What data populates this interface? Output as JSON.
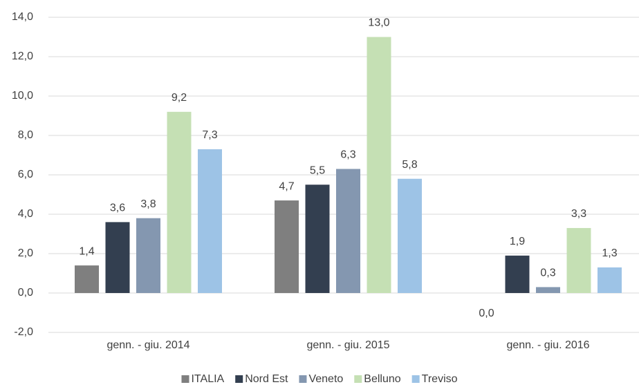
{
  "chart_data": {
    "type": "bar",
    "categories": [
      "genn. - giu. 2014",
      "genn. - giu. 2015",
      "genn. - giu. 2016"
    ],
    "series": [
      {
        "name": "ITALIA",
        "color": "#7f7f7f",
        "values": [
          1.4,
          4.7,
          0.0
        ],
        "value_labels": [
          "1,4",
          "4,7",
          "0,0"
        ]
      },
      {
        "name": "Nord Est",
        "color": "#333f50",
        "values": [
          3.6,
          5.5,
          1.9
        ],
        "value_labels": [
          "3,6",
          "5,5",
          "1,9"
        ]
      },
      {
        "name": "Veneto",
        "color": "#8497b0",
        "values": [
          3.8,
          6.3,
          0.3
        ],
        "value_labels": [
          "3,8",
          "6,3",
          "0,3"
        ]
      },
      {
        "name": "Belluno",
        "color": "#c5e0b4",
        "values": [
          9.2,
          13.0,
          3.3
        ],
        "value_labels": [
          "9,2",
          "13,0",
          "3,3"
        ]
      },
      {
        "name": "Treviso",
        "color": "#9dc3e6",
        "values": [
          7.3,
          5.8,
          1.3
        ],
        "value_labels": [
          "7,3",
          "5,8",
          "1,3"
        ]
      }
    ],
    "ylim": [
      -2,
      14
    ],
    "yticks": [
      {
        "value": -2,
        "label": "-2,0"
      },
      {
        "value": 0,
        "label": "0,0"
      },
      {
        "value": 2,
        "label": "2,0"
      },
      {
        "value": 4,
        "label": "4,0"
      },
      {
        "value": 6,
        "label": "6,0"
      },
      {
        "value": 8,
        "label": "8,0"
      },
      {
        "value": 10,
        "label": "10,0"
      },
      {
        "value": 12,
        "label": "12,0"
      },
      {
        "value": 14,
        "label": "14,0"
      }
    ],
    "grid": true,
    "legend": "bottom"
  }
}
